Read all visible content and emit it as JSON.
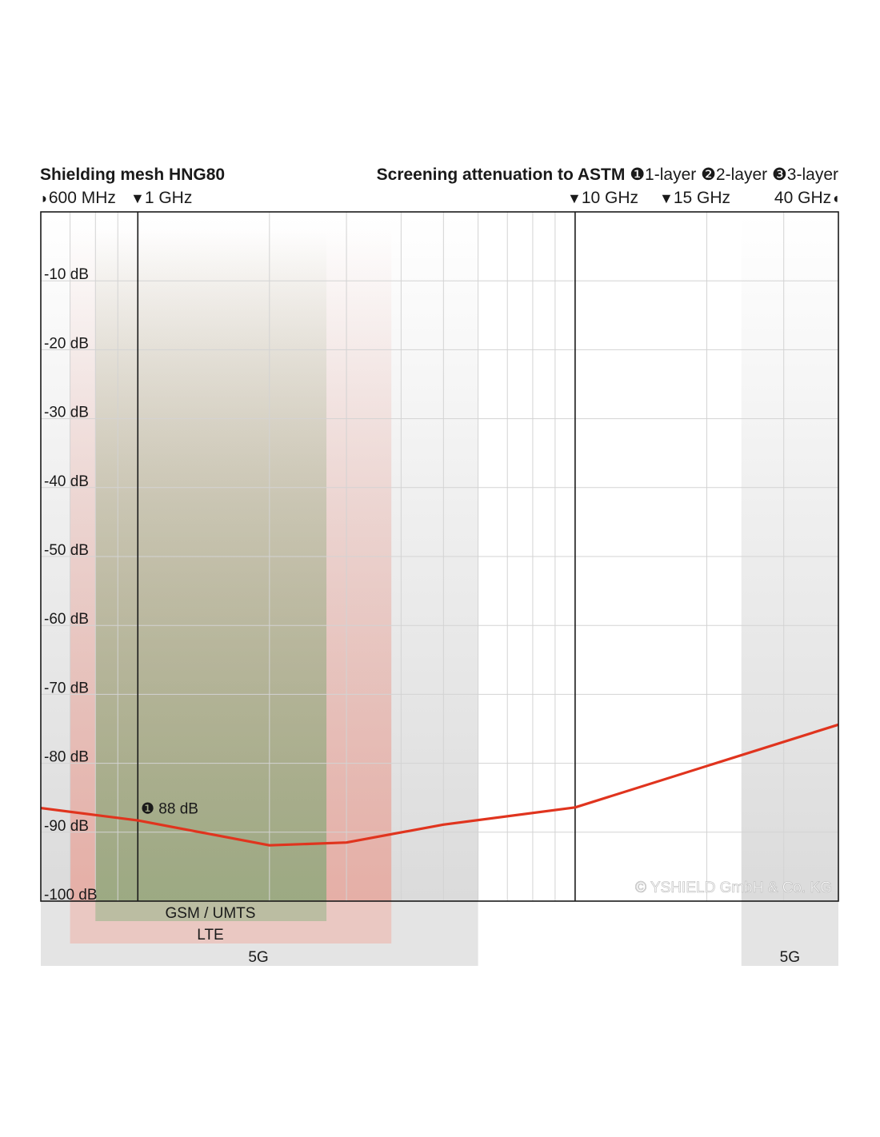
{
  "chart_data": {
    "type": "line",
    "title": "Shielding mesh HNG80",
    "subtitle": "Screening attenuation to ASTM",
    "layers": [
      {
        "mark": "❶",
        "label": "1-layer"
      },
      {
        "mark": "❷",
        "label": "2-layer"
      },
      {
        "mark": "❸",
        "label": "3-layer"
      }
    ],
    "x_scale": "log",
    "x_unit": "GHz",
    "xlim": [
      0.6,
      40
    ],
    "x_markers": [
      {
        "label": "600 MHz",
        "value": 0.6,
        "symbol": "◗"
      },
      {
        "label": "1 GHz",
        "value": 1,
        "symbol": "▼"
      },
      {
        "label": "10 GHz",
        "value": 10,
        "symbol": "▼"
      },
      {
        "label": "15 GHz",
        "value": 15,
        "symbol": "▼"
      },
      {
        "label": "40 GHz",
        "value": 40,
        "symbol": "◖"
      }
    ],
    "x_gridlines": [
      0.7,
      0.8,
      0.9,
      1,
      2,
      3,
      4,
      5,
      6,
      7,
      8,
      9,
      10,
      20,
      30,
      40
    ],
    "ylim": [
      -100,
      0
    ],
    "y_ticks": [
      {
        "value": -10,
        "label": "-10 dB"
      },
      {
        "value": -20,
        "label": "-20 dB"
      },
      {
        "value": -30,
        "label": "-30 dB"
      },
      {
        "value": -40,
        "label": "-40 dB"
      },
      {
        "value": -50,
        "label": "-50 dB"
      },
      {
        "value": -60,
        "label": "-60 dB"
      },
      {
        "value": -70,
        "label": "-70 dB"
      },
      {
        "value": -80,
        "label": "-80 dB"
      },
      {
        "value": -90,
        "label": "-90 dB"
      },
      {
        "value": -100,
        "label": "-100 dB"
      }
    ],
    "series": [
      {
        "color": "#e0341e",
        "x": [
          0.6,
          1,
          2,
          3,
          5,
          10,
          40
        ],
        "y": [
          -86.5,
          -88.3,
          -91.9,
          -91.5,
          -88.9,
          -86.4,
          -74.4
        ]
      }
    ],
    "annotation": {
      "mark": "❶",
      "text": "88 dB",
      "x": 1,
      "y": -88
    },
    "bands": [
      {
        "label": "GSM / UMTS",
        "x_from": 0.8,
        "x_to": 2.7,
        "color": "#8aa87a"
      },
      {
        "label": "LTE",
        "x_from": 0.7,
        "x_to": 3.8,
        "color": "#e7a79d"
      },
      {
        "label": "5G",
        "x_from": 0.6,
        "x_to": 6.0,
        "color": "#d9d9d9"
      },
      {
        "label": "5G",
        "x_from": 24,
        "x_to": 40,
        "color": "#d9d9d9"
      }
    ],
    "watermark": "© YSHIELD GmbH & Co. KG"
  }
}
